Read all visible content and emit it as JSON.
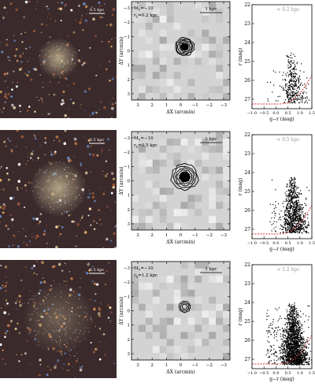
{
  "panels": [
    {
      "sky": {
        "scale_label": "0.5 kpc"
      },
      "density": {
        "magnitude_label": "M",
        "magnitude_sub": "V",
        "magnitude_value": "=−10",
        "radius_label": "r",
        "radius_sub": "h",
        "radius_value": "=0.2 kpc",
        "scale_label": "1 kpc",
        "xlabel": "ΔX (arcmin)",
        "ylabel": "ΔY (arcmin)",
        "ticks": [
          "3",
          "2",
          "1",
          "0",
          "−1",
          "−2",
          "−3"
        ],
        "contour_rings": 6,
        "ring_scale": 0.72
      },
      "cmd": {
        "legend": "< 0.2 kpc",
        "xlabel": "g−r (mag)",
        "ylabel": "r (mag)",
        "xticks": [
          "−1.0",
          "−0.5",
          "0.0",
          "0.5",
          "1.0",
          "1.5"
        ],
        "yticks": [
          "22",
          "23",
          "24",
          "25",
          "26",
          "27"
        ]
      }
    },
    {
      "sky": {
        "scale_label": "0.5 kpc"
      },
      "density": {
        "magnitude_label": "M",
        "magnitude_sub": "V",
        "magnitude_value": "=−10",
        "radius_label": "r",
        "radius_sub": "h",
        "radius_value": "=0.5 kpc",
        "scale_label": "1 kpc",
        "xlabel": "ΔX (arcmin)",
        "ylabel": "ΔY (arcmin)",
        "ticks": [
          "3",
          "2",
          "1",
          "0",
          "−1",
          "−2",
          "−3"
        ],
        "contour_rings": 6,
        "ring_scale": 1.0
      },
      "cmd": {
        "legend": "< 0.5 kpc",
        "xlabel": "g−r (mag)",
        "ylabel": "r (mag)",
        "xticks": [
          "−1.0",
          "−0.5",
          "0.0",
          "0.5",
          "1.0",
          "1.5"
        ],
        "yticks": [
          "22",
          "23",
          "24",
          "25",
          "26",
          "27"
        ]
      }
    },
    {
      "sky": {
        "scale_label": "0.5 kpc"
      },
      "density": {
        "magnitude_label": "M",
        "magnitude_sub": "V",
        "magnitude_value": "=−10",
        "radius_label": "r",
        "radius_sub": "h",
        "radius_value": "=1.2 kpc",
        "scale_label": "1 kpc",
        "xlabel": "ΔX (arcmin)",
        "ylabel": "ΔY (arcmin)",
        "ticks": [
          "3",
          "2",
          "1",
          "0",
          "−1",
          "−2",
          "−3"
        ],
        "contour_rings": 3,
        "ring_scale": 0.8
      },
      "cmd": {
        "legend": "< 1.2 kpc",
        "xlabel": "g−r (mag)",
        "ylabel": "r (mag)",
        "xticks": [
          "−1.0",
          "−0.5",
          "0.0",
          "0.5",
          "1.0",
          "1.5"
        ],
        "yticks": [
          "22",
          "23",
          "24",
          "25",
          "26",
          "27"
        ]
      }
    }
  ],
  "chart_data": [
    {
      "type": "scatter",
      "panel": 1,
      "legend": "< 0.2 kpc",
      "xlabel": "g−r (mag)",
      "ylabel": "r (mag)",
      "xlim": [
        -1.0,
        1.5
      ],
      "ylim": [
        27.5,
        22
      ],
      "approx_points": 350,
      "clump": {
        "x_center": 0.65,
        "y_top": 24.5,
        "y_bottom": 27.2
      }
    },
    {
      "type": "scatter",
      "panel": 2,
      "legend": "< 0.5 kpc",
      "xlabel": "g−r (mag)",
      "ylabel": "r (mag)",
      "xlim": [
        -1.0,
        1.5
      ],
      "ylim": [
        27.5,
        22
      ],
      "approx_points": 900,
      "clump": {
        "x_center": 0.7,
        "y_top": 24.2,
        "y_bottom": 27.2
      }
    },
    {
      "type": "scatter",
      "panel": 3,
      "legend": "< 1.2 kpc",
      "xlabel": "g−r (mag)",
      "ylabel": "r (mag)",
      "xlim": [
        -1.0,
        1.5
      ],
      "ylim": [
        27.5,
        22
      ],
      "approx_points": 1800,
      "clump": {
        "x_center": 0.7,
        "y_top": 24.0,
        "y_bottom": 27.3
      }
    }
  ]
}
